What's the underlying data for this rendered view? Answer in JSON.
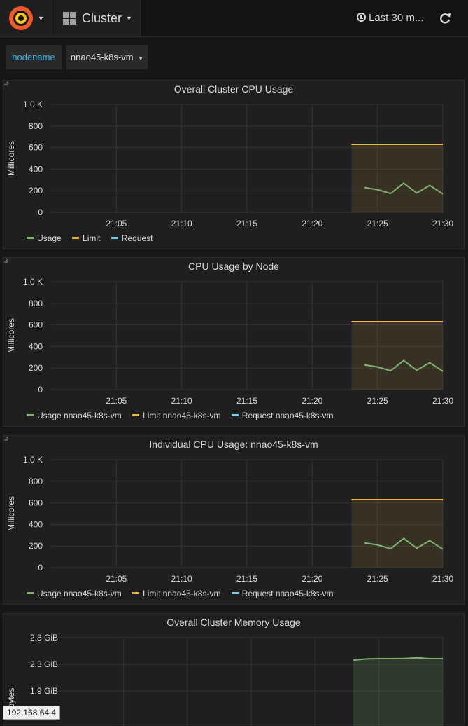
{
  "topbar": {
    "dashboard_title": "Cluster",
    "time_range": "Last 30 m...",
    "colors": {
      "logo_outer": "#f05a28",
      "logo_inner": "#fbca0a"
    }
  },
  "variables": {
    "label": "nodename",
    "value": "nnao45-k8s-vm"
  },
  "panels": [
    {
      "title": "Overall Cluster CPU Usage",
      "ylabel": "Millicores",
      "legend": [
        "Usage",
        "Limit",
        "Request"
      ]
    },
    {
      "title": "CPU Usage by Node",
      "ylabel": "Millicores",
      "legend": [
        "Usage nnao45-k8s-vm",
        "Limit nnao45-k8s-vm",
        "Request nnao45-k8s-vm"
      ]
    },
    {
      "title": "Individual CPU Usage: nnao45-k8s-vm",
      "ylabel": "Millicores",
      "legend": [
        "Usage nnao45-k8s-vm",
        "Limit nnao45-k8s-vm",
        "Request nnao45-k8s-vm"
      ]
    },
    {
      "title": "Overall Cluster Memory Usage",
      "ylabel": "bytes"
    }
  ],
  "status_tooltip": "192.168.64.4",
  "chart_data": [
    {
      "type": "line",
      "title": "Overall Cluster CPU Usage",
      "ylabel": "Millicores",
      "x_ticks": [
        "21:05",
        "21:10",
        "21:15",
        "21:20",
        "21:25",
        "21:30"
      ],
      "y_ticks": [
        "0",
        "200",
        "400",
        "600",
        "800",
        "1.0 K"
      ],
      "ylim": [
        0,
        1000
      ],
      "grid": true,
      "legend_position": "bottom-left",
      "shaded_region_x": [
        "21:23",
        "21:30"
      ],
      "series": [
        {
          "name": "Usage",
          "color": "#7eb26d",
          "x": [
            "21:24",
            "21:25",
            "21:26",
            "21:27",
            "21:28",
            "21:29",
            "21:30"
          ],
          "values": [
            230,
            210,
            175,
            270,
            180,
            250,
            170
          ]
        },
        {
          "name": "Limit",
          "color": "#eab839",
          "x": [
            "21:23",
            "21:30"
          ],
          "values": [
            630,
            630
          ]
        },
        {
          "name": "Request",
          "color": "#6ed0e0",
          "x": [],
          "values": []
        }
      ]
    },
    {
      "type": "line",
      "title": "CPU Usage by Node",
      "ylabel": "Millicores",
      "x_ticks": [
        "21:05",
        "21:10",
        "21:15",
        "21:20",
        "21:25",
        "21:30"
      ],
      "y_ticks": [
        "0",
        "200",
        "400",
        "600",
        "800",
        "1.0 K"
      ],
      "ylim": [
        0,
        1000
      ],
      "grid": true,
      "legend_position": "bottom-left",
      "shaded_region_x": [
        "21:23",
        "21:30"
      ],
      "series": [
        {
          "name": "Usage nnao45-k8s-vm",
          "color": "#7eb26d",
          "x": [
            "21:24",
            "21:25",
            "21:26",
            "21:27",
            "21:28",
            "21:29",
            "21:30"
          ],
          "values": [
            230,
            210,
            175,
            270,
            180,
            250,
            170
          ]
        },
        {
          "name": "Limit nnao45-k8s-vm",
          "color": "#eab839",
          "x": [
            "21:23",
            "21:30"
          ],
          "values": [
            630,
            630
          ]
        },
        {
          "name": "Request nnao45-k8s-vm",
          "color": "#6ed0e0",
          "x": [],
          "values": []
        }
      ]
    },
    {
      "type": "line",
      "title": "Individual CPU Usage: nnao45-k8s-vm",
      "ylabel": "Millicores",
      "x_ticks": [
        "21:05",
        "21:10",
        "21:15",
        "21:20",
        "21:25",
        "21:30"
      ],
      "y_ticks": [
        "0",
        "200",
        "400",
        "600",
        "800",
        "1.0 K"
      ],
      "ylim": [
        0,
        1000
      ],
      "grid": true,
      "legend_position": "bottom-left",
      "shaded_region_x": [
        "21:23",
        "21:30"
      ],
      "series": [
        {
          "name": "Usage nnao45-k8s-vm",
          "color": "#7eb26d",
          "x": [
            "21:24",
            "21:25",
            "21:26",
            "21:27",
            "21:28",
            "21:29",
            "21:30"
          ],
          "values": [
            230,
            210,
            175,
            270,
            180,
            250,
            170
          ]
        },
        {
          "name": "Limit nnao45-k8s-vm",
          "color": "#eab839",
          "x": [
            "21:23",
            "21:30"
          ],
          "values": [
            630,
            630
          ]
        },
        {
          "name": "Request nnao45-k8s-vm",
          "color": "#6ed0e0",
          "x": [],
          "values": []
        }
      ]
    },
    {
      "type": "area",
      "title": "Overall Cluster Memory Usage",
      "ylabel": "bytes",
      "y_ticks": [
        "1.9 GiB",
        "2.3 GiB",
        "2.8 GiB"
      ],
      "ylim_gib": [
        1.9,
        2.8
      ],
      "grid": true,
      "shaded_region_x": [
        "21:23",
        "21:30"
      ],
      "series": [
        {
          "color": "#7eb26d",
          "x": [
            "21:23",
            "21:24",
            "21:25",
            "21:26",
            "21:27",
            "21:28",
            "21:29",
            "21:30"
          ],
          "values": [
            2.42,
            2.44,
            2.445,
            2.445,
            2.447,
            2.46,
            2.445,
            2.445
          ]
        }
      ]
    }
  ]
}
